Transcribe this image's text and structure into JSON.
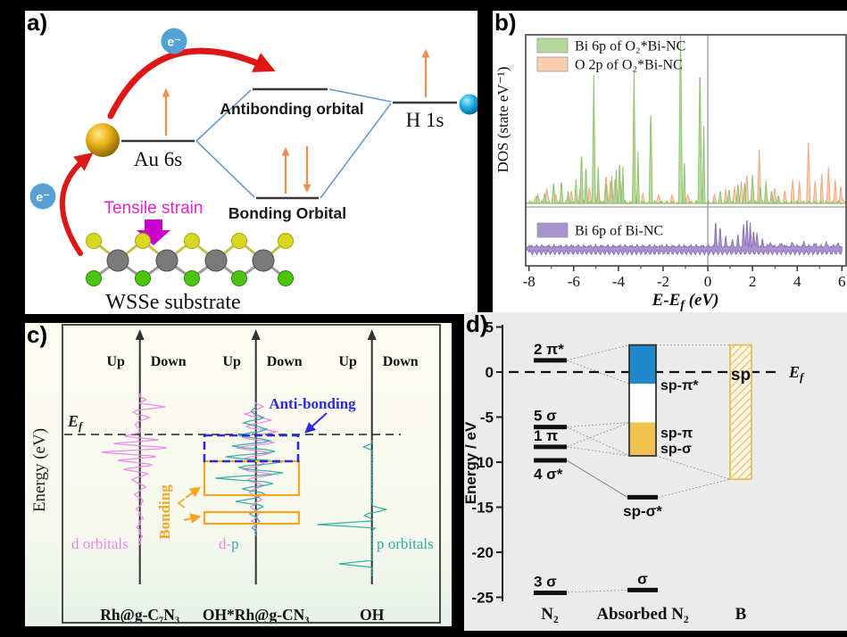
{
  "page": {
    "background": "#000000"
  },
  "panels": {
    "a": {
      "label": "a)",
      "electron": "e⁻",
      "au_level": "Au 6s",
      "antibonding": "Antibonding orbital",
      "bonding": "Bonding Orbital",
      "h_level": "H 1s",
      "tensile": "Tensile strain",
      "substrate": "WSSe substrate",
      "colors": {
        "red_arrow": "#df1616",
        "spin_arrow": "#ef8e4e",
        "electron_circle": "#55a1d6",
        "magenta": "#e324cd",
        "gold": "#e8b019",
        "h_atom": "#18a8e0",
        "w_atom": "#7a7a7a",
        "s_atom": "#d8d820",
        "se_atom": "#4cc414",
        "level_line": "#3a3a3a",
        "coupling_line": "#6a99d8"
      }
    },
    "b": {
      "label": "b)"
    },
    "c": {
      "label": "c)"
    },
    "d": {
      "label": "d)"
    }
  },
  "chart_data": [
    {
      "panel": "b",
      "type": "area",
      "title": "",
      "xlabel_main": "E-E",
      "xlabel_sub": "f",
      "xlabel_unit": " (eV)",
      "ylabel": "DOS (state eV⁻¹)",
      "xlim": [
        -8,
        6
      ],
      "xticks": [
        -8,
        -6,
        -4,
        -2,
        0,
        2,
        4,
        6
      ],
      "fermi_x": 0,
      "grid": false,
      "legend_position": "upper-left",
      "series": [
        {
          "name": "O 2p of O₂*Bi-NC",
          "group": "upper",
          "color": "#f9cdb0",
          "edge": "#f2a87d",
          "noise": 0.018,
          "peaks": [
            [
              -7.7,
              0.04,
              0.1
            ],
            [
              -7.2,
              0.08,
              0.1
            ],
            [
              -6.8,
              0.05,
              0.08
            ],
            [
              -6.1,
              0.06,
              0.08
            ],
            [
              -5.7,
              0.1,
              0.09
            ],
            [
              -5.3,
              0.09,
              0.08
            ],
            [
              -4.9,
              0.11,
              0.09
            ],
            [
              -4.55,
              0.17,
              0.09
            ],
            [
              -4.35,
              0.15,
              0.08
            ],
            [
              -4.15,
              0.15,
              0.08
            ],
            [
              -3.9,
              0.12,
              0.08
            ],
            [
              -3.3,
              0.35,
              0.08
            ],
            [
              -2.9,
              0.05,
              0.08
            ],
            [
              -2.2,
              0.05,
              0.1
            ],
            [
              -1.6,
              0.04,
              0.1
            ],
            [
              -0.9,
              0.05,
              0.1
            ],
            [
              -0.35,
              0.07,
              0.08
            ],
            [
              0.3,
              0.05,
              0.08
            ],
            [
              0.8,
              0.07,
              0.08
            ],
            [
              1.2,
              0.1,
              0.08
            ],
            [
              1.5,
              0.13,
              0.08
            ],
            [
              1.75,
              0.19,
              0.07
            ],
            [
              2.0,
              0.15,
              0.07
            ],
            [
              2.3,
              0.32,
              0.08
            ],
            [
              2.6,
              0.13,
              0.07
            ],
            [
              3.0,
              0.08,
              0.08
            ],
            [
              3.45,
              0.07,
              0.08
            ],
            [
              3.8,
              0.14,
              0.08
            ],
            [
              4.1,
              0.13,
              0.07
            ],
            [
              4.5,
              0.35,
              0.08
            ],
            [
              4.8,
              0.13,
              0.07
            ],
            [
              5.1,
              0.17,
              0.07
            ],
            [
              5.4,
              0.21,
              0.08
            ],
            [
              5.7,
              0.14,
              0.07
            ],
            [
              5.95,
              0.11,
              0.07
            ]
          ]
        },
        {
          "name": "Bi 6p of O₂*Bi-NC",
          "group": "upper",
          "color": "#b5d99c",
          "edge": "#8fc470",
          "noise": 0.015,
          "peaks": [
            [
              -7.6,
              0.05,
              0.08
            ],
            [
              -7.3,
              0.06,
              0.07
            ],
            [
              -6.9,
              0.11,
              0.08
            ],
            [
              -6.55,
              0.13,
              0.07
            ],
            [
              -6.25,
              0.08,
              0.06
            ],
            [
              -5.9,
              0.14,
              0.06
            ],
            [
              -5.65,
              0.32,
              0.07
            ],
            [
              -5.45,
              0.24,
              0.06
            ],
            [
              -5.1,
              0.76,
              0.07
            ],
            [
              -4.9,
              0.22,
              0.05
            ],
            [
              -4.55,
              0.13,
              0.06
            ],
            [
              -4.3,
              0.16,
              0.06
            ],
            [
              -4.1,
              0.2,
              0.06
            ],
            [
              -3.95,
              0.26,
              0.06
            ],
            [
              -3.8,
              0.22,
              0.05
            ],
            [
              -3.3,
              0.78,
              0.07
            ],
            [
              -3.12,
              0.3,
              0.05
            ],
            [
              -2.55,
              0.6,
              0.07
            ],
            [
              -1.22,
              1.08,
              0.08
            ],
            [
              -1.05,
              0.28,
              0.05
            ],
            [
              -0.35,
              0.85,
              0.08
            ],
            [
              -0.18,
              0.45,
              0.06
            ],
            [
              0.55,
              0.07,
              0.07
            ],
            [
              0.95,
              0.09,
              0.07
            ],
            [
              1.35,
              0.11,
              0.07
            ],
            [
              1.65,
              0.13,
              0.06
            ],
            [
              2.0,
              0.17,
              0.08
            ],
            [
              2.35,
              0.11,
              0.06
            ],
            [
              2.6,
              0.13,
              0.06
            ],
            [
              2.85,
              0.08,
              0.06
            ],
            [
              3.15,
              0.05,
              0.06
            ]
          ]
        },
        {
          "name": "Bi 6p of Bi-NC",
          "group": "lower",
          "color": "#a993cf",
          "edge": "#8d74bd",
          "noise": 0.06,
          "peaks": [
            [
              0.35,
              0.6,
              0.06
            ],
            [
              0.55,
              0.45,
              0.06
            ],
            [
              0.8,
              0.2,
              0.06
            ],
            [
              1.1,
              0.14,
              0.06
            ],
            [
              1.35,
              0.25,
              0.06
            ],
            [
              1.6,
              0.5,
              0.06
            ],
            [
              1.75,
              0.7,
              0.06
            ],
            [
              1.9,
              0.5,
              0.06
            ],
            [
              2.05,
              0.4,
              0.06
            ],
            [
              2.2,
              0.3,
              0.06
            ],
            [
              2.45,
              0.15,
              0.06
            ],
            [
              2.8,
              0.1,
              0.08
            ],
            [
              3.3,
              0.07,
              0.1
            ],
            [
              3.8,
              0.08,
              0.1
            ],
            [
              4.3,
              0.07,
              0.1
            ],
            [
              4.8,
              0.06,
              0.1
            ],
            [
              5.3,
              0.07,
              0.1
            ],
            [
              5.8,
              0.06,
              0.1
            ]
          ]
        }
      ]
    },
    {
      "panel": "c",
      "type": "line",
      "ylabel": "Energy (eV)",
      "ef_main": "E",
      "ef_sub": "f",
      "columns": [
        {
          "name": "Rh@g-C₇N₃",
          "up": "Up",
          "down": "Down",
          "curves": [
            {
              "color": "#ee86e8",
              "range": [
                79,
                249
              ],
              "spikes": [
                [
                  86,
                  6
                ],
                [
                  94,
                  28
                ],
                [
                  100,
                  -8
                ],
                [
                  106,
                  10
                ],
                [
                  114,
                  -6
                ],
                [
                  127,
                  -18
                ],
                [
                  131,
                  22
                ],
                [
                  135,
                  -30
                ],
                [
                  140,
                  30
                ],
                [
                  145,
                  -42
                ],
                [
                  150,
                  18
                ],
                [
                  154,
                  -25
                ],
                [
                  159,
                  14
                ],
                [
                  164,
                  -18
                ],
                [
                  169,
                  8
                ],
                [
                  176,
                  -10
                ],
                [
                  184,
                  6
                ],
                [
                  192,
                  -6
                ],
                [
                  200,
                  4
                ],
                [
                  209,
                  -4
                ],
                [
                  219,
                  3
                ],
                [
                  229,
                  -3
                ],
                [
                  239,
                  2
                ]
              ]
            }
          ]
        },
        {
          "name": "OH*Rh@g-CN₃",
          "up": "Up",
          "down": "Down",
          "curves": [
            {
              "color": "#ee86e8",
              "range": [
                89,
                234
              ],
              "spikes": [
                [
                  94,
                  8
                ],
                [
                  102,
                  -12
                ],
                [
                  109,
                  18
                ],
                [
                  116,
                  -10
                ],
                [
                  122,
                  24
                ],
                [
                  128,
                  -16
                ],
                [
                  134,
                  20
                ],
                [
                  140,
                  -22
                ],
                [
                  146,
                  16
                ],
                [
                  152,
                  -12
                ],
                [
                  158,
                  10
                ],
                [
                  164,
                  -14
                ],
                [
                  170,
                  18
                ],
                [
                  176,
                  -10
                ],
                [
                  182,
                  8
                ],
                [
                  190,
                  -8
                ],
                [
                  198,
                  6
                ],
                [
                  206,
                  -6
                ],
                [
                  214,
                  4
                ],
                [
                  222,
                  -4
                ]
              ]
            },
            {
              "color": "#2fae9f",
              "range": [
                92,
                239
              ],
              "spikes": [
                [
                  99,
                  -6
                ],
                [
                  106,
                  8
                ],
                [
                  112,
                  -14
                ],
                [
                  119,
                  12
                ],
                [
                  126,
                  -20
                ],
                [
                  132,
                  16
                ],
                [
                  138,
                  -26
                ],
                [
                  144,
                  22
                ],
                [
                  150,
                  -34
                ],
                [
                  156,
                  28
                ],
                [
                  162,
                  -20
                ],
                [
                  168,
                  30
                ],
                [
                  174,
                  -45
                ],
                [
                  180,
                  20
                ],
                [
                  186,
                  -14
                ],
                [
                  192,
                  10
                ],
                [
                  200,
                  -22
                ],
                [
                  206,
                  8
                ],
                [
                  214,
                  -6
                ],
                [
                  222,
                  5
                ],
                [
                  230,
                  -4
                ]
              ]
            }
          ]
        },
        {
          "name": "OH",
          "up": "Up",
          "down": "Down",
          "curves": [
            {
              "color": "#2fae9f",
              "range": [
                132,
                284
              ],
              "spikes": [
                [
                  139,
                  -9
                ],
                [
                  209,
                  16
                ],
                [
                  216,
                  -8
                ],
                [
                  226,
                  -66
                ],
                [
                  228,
                  8
                ],
                [
                  270,
                  -36
                ]
              ]
            }
          ]
        }
      ],
      "annotations": {
        "antibonding_label": "Anti-bonding",
        "antibonding_color": "#2b2bdb",
        "bonding_label": "Bonding",
        "bonding_color": "#f5a623",
        "antibonding_box": [
          201,
          126,
          306,
          155
        ],
        "bonding_boxes": [
          [
            201,
            155,
            307,
            193
          ],
          [
            201,
            212,
            307,
            225
          ]
        ],
        "curve_label_1": "d orbitals",
        "curve_label_1_color": "#ee86e8",
        "curve_label_2a": "d-",
        "curve_label_2b": "p",
        "curve_label_2a_color": "#ee86e8",
        "curve_label_2b_color": "#2fae9f",
        "curve_label_3": "p orbitals",
        "curve_label_3_color": "#2fae9f"
      }
    },
    {
      "panel": "d",
      "type": "energy-levels",
      "ylabel": "Energy / eV",
      "yticks": [
        5,
        0,
        -5,
        -10,
        -15,
        -20,
        -25
      ],
      "ylim": [
        5.5,
        -25.8
      ],
      "ef": 0,
      "ef_main": "E",
      "ef_sub": "f",
      "columns": [
        "N₂",
        "Absorbed N₂",
        "B"
      ],
      "n2_levels": [
        {
          "label": "2 π*",
          "e": 1.3,
          "lp": "above"
        },
        {
          "label": "5 σ",
          "e": -6.1,
          "lp": "above"
        },
        {
          "label": "1 π",
          "e": -8.3,
          "lp": "above"
        },
        {
          "label": "4 σ*",
          "e": -9.8,
          "lp": "below"
        },
        {
          "label": "3 σ",
          "e": -24.5,
          "lp": "above"
        }
      ],
      "adsorbed_box": {
        "top": 3.0,
        "blue_bottom": -1.3,
        "yellow_top": -5.6,
        "bottom": -9.3,
        "blue": "#1f8ac9",
        "yellow": "#f0c350"
      },
      "adsorbed_levels": [
        {
          "label": "sp-σ*",
          "e": -13.9,
          "lp": "below"
        },
        {
          "label": "σ",
          "e": -24.2,
          "lp": "above"
        }
      ],
      "box_side_labels": [
        {
          "text": "sp-π*",
          "e": -1.4
        },
        {
          "text": "sp-π",
          "e": -6.7
        },
        {
          "text": "sp-σ",
          "e": -8.4
        }
      ],
      "b_band": {
        "top": 3.0,
        "bottom": -11.9,
        "label": "sp",
        "edge": "#e6c566",
        "hatch": "#eccb70",
        "bg": "#fdf7e9"
      }
    }
  ]
}
